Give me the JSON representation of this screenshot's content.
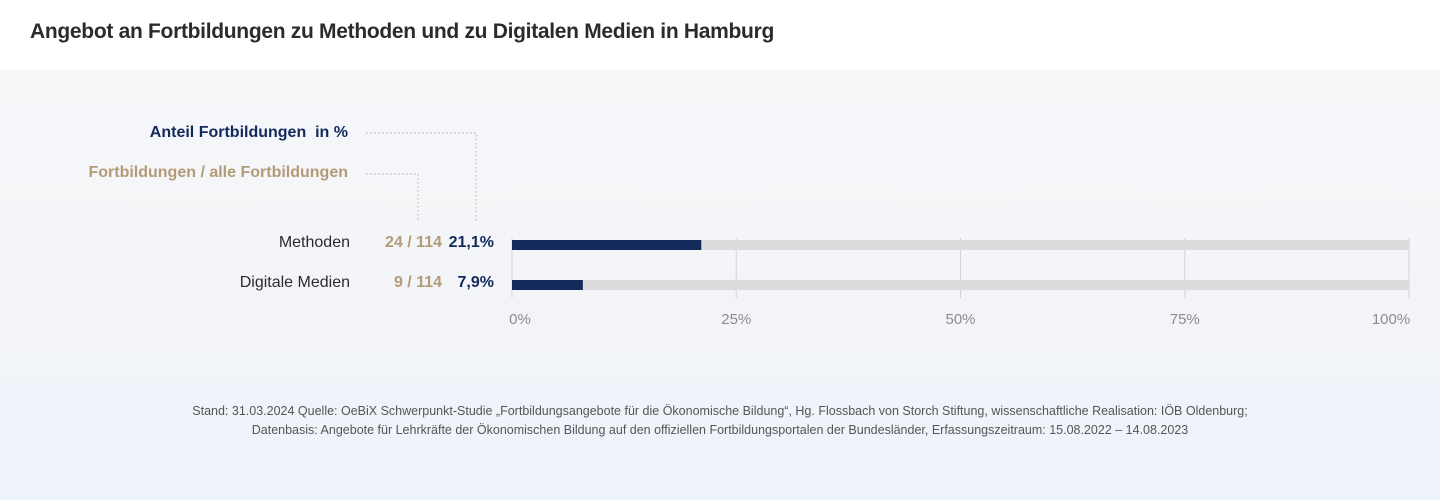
{
  "title": "Angebot an Fortbildungen zu Methoden und zu Digitalen Medien in Hamburg",
  "legend": {
    "percent_label": "Anteil Fortbildungen  in %",
    "fraction_label": "Fortbildungen / alle Fortbildungen"
  },
  "colors": {
    "bar": "#13295c",
    "track": "#dcdcdc",
    "fraction_text": "#b39b78",
    "percent_text": "#13295c",
    "grid": "#d4d4d4"
  },
  "chart_data": {
    "type": "bar",
    "orientation": "horizontal",
    "title": "Angebot an Fortbildungen zu Methoden und zu Digitalen Medien in Hamburg",
    "categories": [
      "Methoden",
      "Digitale Medien"
    ],
    "values": [
      21.1,
      7.9
    ],
    "value_labels": [
      "21,1%",
      "7,9%"
    ],
    "fractions": [
      "24 / 114",
      "9 / 114"
    ],
    "counts": [
      24,
      9
    ],
    "totals": [
      114,
      114
    ],
    "xlim": [
      0,
      100
    ],
    "x_ticks": [
      0,
      25,
      50,
      75,
      100
    ],
    "x_tick_labels": [
      "0%",
      "25%",
      "50%",
      "75%",
      "100%"
    ],
    "xlabel": "",
    "ylabel": "",
    "grid": true,
    "legend": [
      "Anteil Fortbildungen  in %",
      "Fortbildungen / alle Fortbildungen"
    ],
    "legend_position": "top-left"
  },
  "footer": {
    "line1": "Stand: 31.03.2024 Quelle: OeBiX Schwerpunkt-Studie „Fortbildungsangebote für die Ökonomische Bildung“, Hg. Flossbach von Storch Stiftung, wissenschaftliche Realisation: IÖB Oldenburg;",
    "line2": "Datenbasis: Angebote für Lehrkräfte der Ökonomischen Bildung auf den offiziellen Fortbildungsportalen der Bundesländer, Erfassungszeitraum: 15.08.2022 – 14.08.2023"
  }
}
